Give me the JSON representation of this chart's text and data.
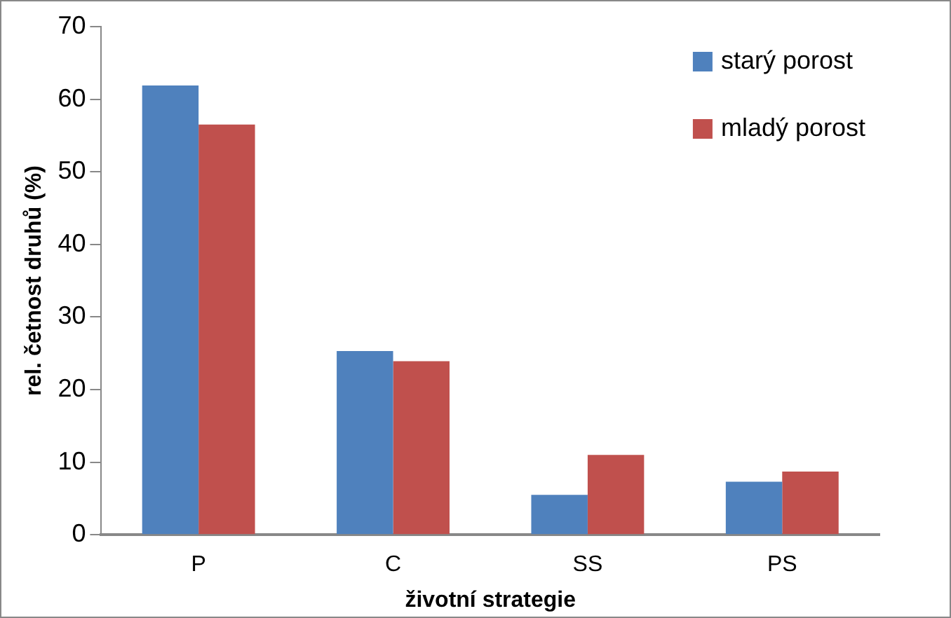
{
  "chart_data": {
    "type": "bar",
    "xlabel": "životní strategie",
    "ylabel": "rel. četnost druhů (%)",
    "categories": [
      "P",
      "C",
      "SS",
      "PS"
    ],
    "series": [
      {
        "name": "starý porost",
        "color": "#4f81bd",
        "values": [
          61.9,
          25.3,
          5.5,
          7.3
        ]
      },
      {
        "name": "mladý porost",
        "color": "#c0504d",
        "values": [
          56.5,
          23.9,
          11.0,
          8.7
        ]
      }
    ],
    "ylim": [
      0,
      70
    ],
    "yticks": [
      0,
      10,
      20,
      30,
      40,
      50,
      60,
      70
    ],
    "grid": false,
    "legend": "top right"
  }
}
